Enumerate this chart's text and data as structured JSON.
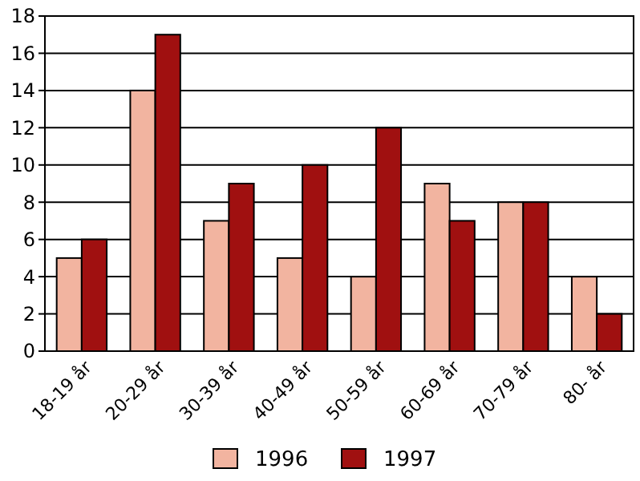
{
  "chart_data": {
    "type": "bar",
    "categories": [
      "18-19 år",
      "20-29 år",
      "30-39 år",
      "40-49 år",
      "50-59 år",
      "60-69 år",
      "70-79 år",
      "80- år"
    ],
    "series": [
      {
        "name": "1996",
        "color": "#f2b4a0",
        "values": [
          5,
          14,
          7,
          5,
          4,
          9,
          8,
          4
        ]
      },
      {
        "name": "1997",
        "color": "#a01010",
        "values": [
          6,
          17,
          9,
          10,
          12,
          7,
          8,
          2
        ]
      }
    ],
    "ylim": [
      0,
      18
    ],
    "yticks": [
      0,
      2,
      4,
      6,
      8,
      10,
      12,
      14,
      16,
      18
    ],
    "grid": "y",
    "legend": "bottom"
  }
}
